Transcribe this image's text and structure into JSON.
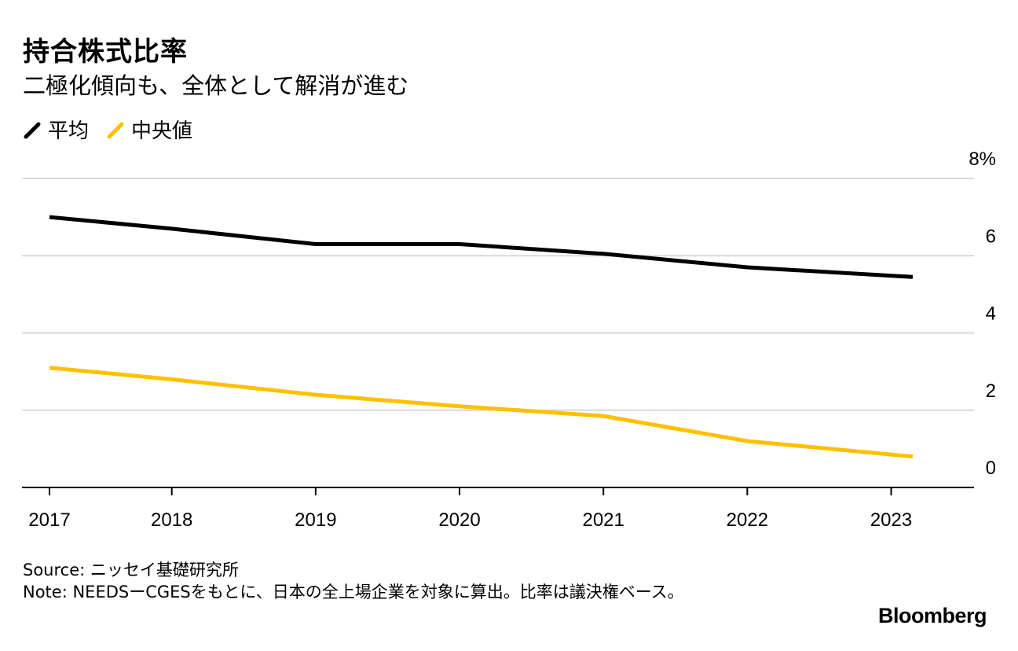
{
  "chart_data": {
    "type": "line",
    "title": "持合株式比率",
    "subtitle": "二極化傾向も、全体として解消が進む",
    "x": [
      2017,
      2017.85,
      2019,
      2020,
      2021,
      2022,
      2023
    ],
    "x_tick_labels": [
      "2017",
      "2018",
      "2019",
      "2020",
      "2021",
      "2022",
      "2023"
    ],
    "x_tick_values": [
      2017,
      2017.85,
      2018.85,
      2019.85,
      2020.85,
      2021.85,
      2022.85
    ],
    "series": [
      {
        "name": "平均",
        "color": "#000000",
        "x": [
          2017,
          2017.85,
          2018.85,
          2019.85,
          2020.85,
          2021.85,
          2023
        ],
        "values": [
          7.0,
          6.7,
          6.3,
          6.3,
          6.05,
          5.7,
          5.45
        ]
      },
      {
        "name": "中央値",
        "color": "#ffc000",
        "x": [
          2017,
          2017.85,
          2018.85,
          2019.85,
          2020.85,
          2021.85,
          2023
        ],
        "values": [
          3.1,
          2.8,
          2.4,
          2.1,
          1.85,
          1.2,
          0.8
        ]
      }
    ],
    "y_tick_values": [
      0,
      2,
      4,
      6,
      8
    ],
    "y_tick_labels": [
      "0",
      "2",
      "4",
      "6",
      "8%"
    ],
    "ylim": [
      0,
      8
    ],
    "xlabel": "",
    "ylabel": "",
    "grid": true,
    "legend": "top-left"
  },
  "source": "Source: ニッセイ基礎研究所",
  "note": "Note: NEEDSーCGESをもとに、日本の全上場企業を対象に算出。比率は議決権ベース。",
  "brand": "Bloomberg"
}
